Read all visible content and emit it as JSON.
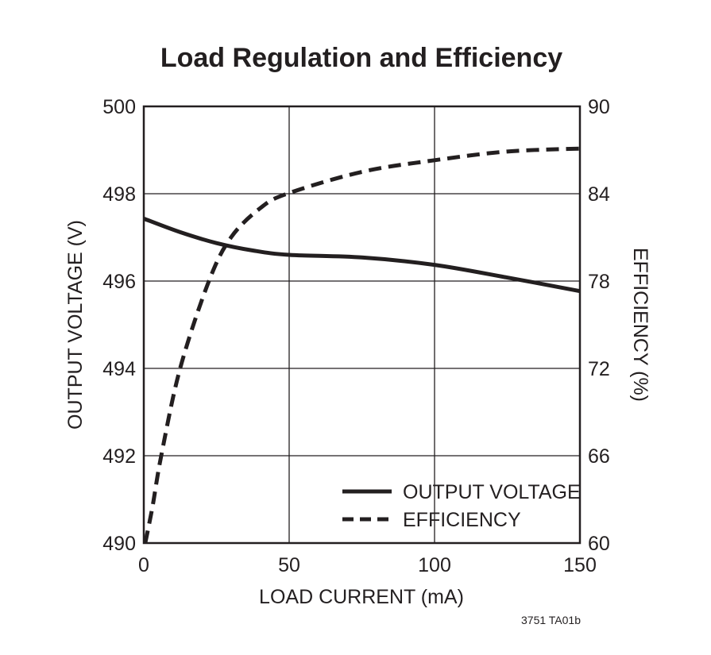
{
  "chart_data": {
    "type": "line",
    "title": "Load Regulation and Efficiency",
    "xlabel": "LOAD CURRENT (mA)",
    "ylabel": "OUTPUT VOLTAGE (V)",
    "y2label": "EFFICIENCY (%)",
    "xlim": [
      0,
      150
    ],
    "ylim": [
      490,
      500
    ],
    "y2lim": [
      60,
      90
    ],
    "x_ticks": [
      "0",
      "50",
      "100",
      "150"
    ],
    "y_ticks": [
      "490",
      "492",
      "494",
      "496",
      "498",
      "500"
    ],
    "y2_ticks": [
      "60",
      "66",
      "72",
      "78",
      "84",
      "90"
    ],
    "grid": true,
    "legend_position": "bottom-right",
    "series": [
      {
        "name": "OUTPUT VOLTAGE",
        "axis": "left",
        "style": "solid",
        "x": [
          0,
          12.5,
          25,
          37.5,
          50,
          75,
          100,
          125,
          150
        ],
        "y": [
          497.43,
          497.12,
          496.87,
          496.7,
          496.6,
          496.54,
          496.37,
          496.08,
          495.77
        ]
      },
      {
        "name": "EFFICIENCY",
        "axis": "right",
        "style": "dashed",
        "x": [
          0.5,
          3,
          6,
          12.5,
          22.4,
          30,
          40,
          49.3,
          75,
          100,
          125,
          150
        ],
        "y": [
          60,
          62.5,
          66,
          72,
          78,
          81,
          83,
          84,
          85.5,
          86.3,
          86.9,
          87.1
        ]
      }
    ],
    "color": "#231f20"
  },
  "footnote": "3751 TA01b"
}
